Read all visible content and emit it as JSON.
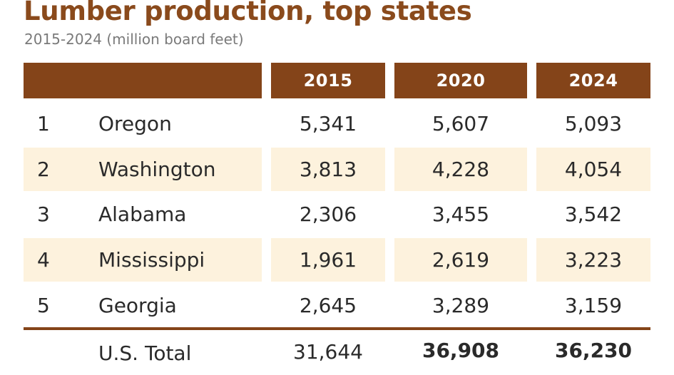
{
  "chart_data": {
    "type": "table",
    "title": "Lumber production, top states",
    "subtitle": "2015-2024 (million board feet)",
    "columns": [
      "2015",
      "2020",
      "2024"
    ],
    "rows": [
      {
        "rank": "1",
        "state": "Oregon",
        "values": [
          "5,341",
          "5,607",
          "5,093"
        ]
      },
      {
        "rank": "2",
        "state": "Washington",
        "values": [
          "3,813",
          "4,228",
          "4,054"
        ]
      },
      {
        "rank": "3",
        "state": "Alabama",
        "values": [
          "2,306",
          "3,455",
          "3,542"
        ]
      },
      {
        "rank": "4",
        "state": "Mississippi",
        "values": [
          "1,961",
          "2,619",
          "3,223"
        ]
      },
      {
        "rank": "5",
        "state": "Georgia",
        "values": [
          "2,645",
          "3,289",
          "3,159"
        ]
      }
    ],
    "total": {
      "label": "U.S. Total",
      "values": [
        "31,644",
        "36,908",
        "36,230"
      ]
    }
  },
  "colors": {
    "title": "#8a4a1c",
    "header_bg": "#844419",
    "band_bg": "#fdf2dd",
    "rule": "#844419"
  }
}
